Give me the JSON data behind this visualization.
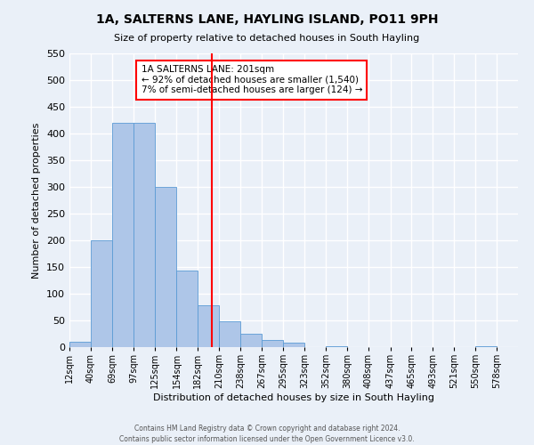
{
  "title": "1A, SALTERNS LANE, HAYLING ISLAND, PO11 9PH",
  "subtitle": "Size of property relative to detached houses in South Hayling",
  "xlabel": "Distribution of detached houses by size in South Hayling",
  "ylabel": "Number of detached properties",
  "bin_labels": [
    "12sqm",
    "40sqm",
    "69sqm",
    "97sqm",
    "125sqm",
    "154sqm",
    "182sqm",
    "210sqm",
    "238sqm",
    "267sqm",
    "295sqm",
    "323sqm",
    "352sqm",
    "380sqm",
    "408sqm",
    "437sqm",
    "465sqm",
    "493sqm",
    "521sqm",
    "550sqm",
    "578sqm"
  ],
  "bin_edges": [
    12,
    40,
    69,
    97,
    125,
    154,
    182,
    210,
    238,
    267,
    295,
    323,
    352,
    380,
    408,
    437,
    465,
    493,
    521,
    550,
    578
  ],
  "bar_heights": [
    10,
    200,
    420,
    420,
    300,
    143,
    78,
    48,
    25,
    13,
    8,
    0,
    1,
    0,
    0,
    0,
    0,
    0,
    0,
    1
  ],
  "bar_color": "#AEC6E8",
  "bar_edge_color": "#5B9BD5",
  "property_size": 201,
  "vline_color": "red",
  "annotation_title": "1A SALTERNS LANE: 201sqm",
  "annotation_line1": "← 92% of detached houses are smaller (1,540)",
  "annotation_line2": "7% of semi-detached houses are larger (124) →",
  "annotation_box_color": "white",
  "annotation_box_edge_color": "red",
  "ylim": [
    0,
    550
  ],
  "yticks": [
    0,
    50,
    100,
    150,
    200,
    250,
    300,
    350,
    400,
    450,
    500,
    550
  ],
  "footer1": "Contains HM Land Registry data © Crown copyright and database right 2024.",
  "footer2": "Contains public sector information licensed under the Open Government Licence v3.0.",
  "background_color": "#EAF0F8",
  "grid_color": "white",
  "title_fontsize": 10,
  "subtitle_fontsize": 8,
  "xlabel_fontsize": 8,
  "ylabel_fontsize": 8,
  "tick_fontsize": 7,
  "annotation_fontsize": 7.5,
  "footer_fontsize": 5.5
}
